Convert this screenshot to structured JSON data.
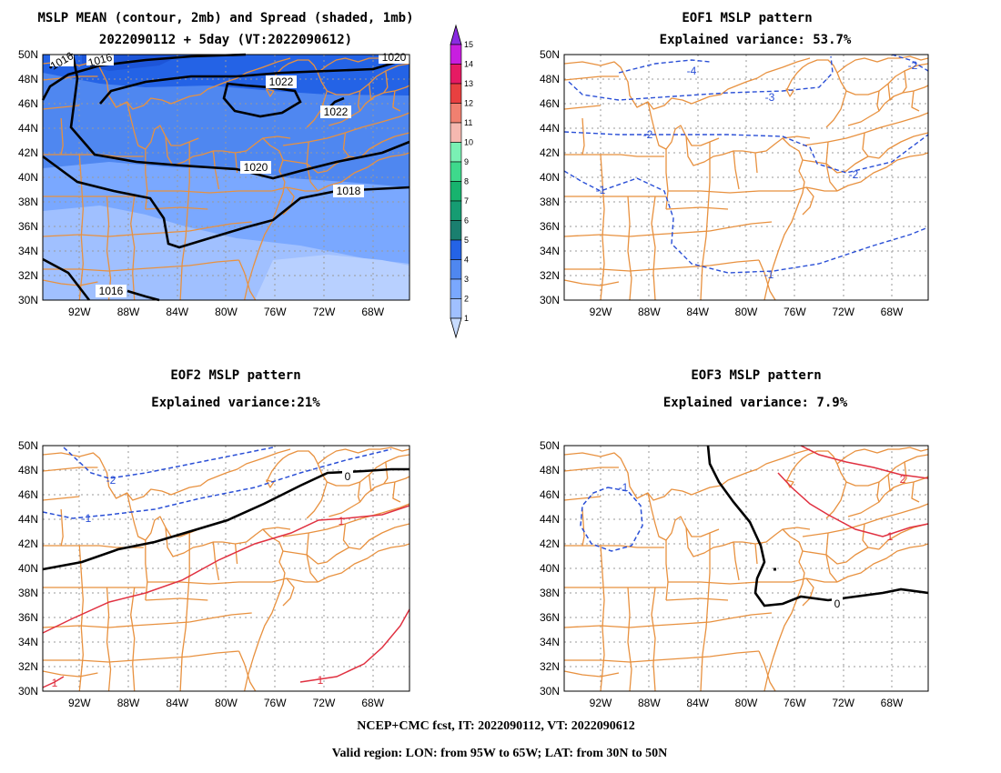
{
  "figure": {
    "footer_line1": "NCEP+CMC fcst, IT: 2022090112, VT: 2022090612",
    "footer_line2": "Valid region: LON: from 95W to 65W; LAT: from 30N to 50N"
  },
  "panels": [
    {
      "id": "mean",
      "title_lines": [
        "MSLP MEAN (contour, 2mb) and Spread (shaded, 1mb)",
        "2022090112 + 5day (VT:2022090612)"
      ],
      "contour_labels": [
        {
          "text": "1016"
        },
        {
          "text": "1016"
        },
        {
          "text": "1016"
        },
        {
          "text": "1018"
        },
        {
          "text": "1020"
        },
        {
          "text": "1020"
        },
        {
          "text": "1022"
        },
        {
          "text": "1022"
        }
      ]
    },
    {
      "id": "eof1",
      "title_lines": [
        "EOF1 MSLP pattern",
        "Explained variance: 53.7%"
      ],
      "contour_labels": [
        {
          "text": "-4"
        },
        {
          "text": "-3"
        },
        {
          "text": "-2"
        },
        {
          "text": "-2"
        },
        {
          "text": "-2"
        },
        {
          "text": "-1"
        },
        {
          "text": "-1"
        }
      ]
    },
    {
      "id": "eof2",
      "title_lines": [
        "EOF2 MSLP pattern",
        "Explained variance:21%"
      ],
      "contour_labels": [
        {
          "text": "-2"
        },
        {
          "text": "-1"
        },
        {
          "text": "0"
        },
        {
          "text": "1"
        },
        {
          "text": "1"
        },
        {
          "text": "1"
        }
      ]
    },
    {
      "id": "eof3",
      "title_lines": [
        "EOF3 MSLP pattern",
        "Explained variance: 7.9%"
      ],
      "contour_labels": [
        {
          "text": "-1"
        },
        {
          "text": "0"
        },
        {
          "text": "2"
        },
        {
          "text": "1"
        }
      ]
    }
  ],
  "axes": {
    "lat_ticks": [
      "50N",
      "48N",
      "46N",
      "44N",
      "42N",
      "40N",
      "38N",
      "36N",
      "34N",
      "32N",
      "30N"
    ],
    "lon_ticks": [
      "92W",
      "88W",
      "84W",
      "80W",
      "76W",
      "72W",
      "68W"
    ],
    "lon_range_deg": [
      -95,
      -65
    ],
    "lat_range_deg": [
      30,
      50
    ]
  },
  "colorbar": {
    "levels": [
      "1",
      "2",
      "3",
      "4",
      "5",
      "6",
      "7",
      "8",
      "9",
      "10",
      "11",
      "12",
      "13",
      "14",
      "15"
    ],
    "colors": [
      "#c8dcff",
      "#a0c0ff",
      "#7aa8ff",
      "#4f87f0",
      "#2463e6",
      "#1a7f6f",
      "#169c72",
      "#17b36e",
      "#3ed98c",
      "#7af0b4",
      "#f5b8b0",
      "#f08070",
      "#e84040",
      "#e61a63",
      "#c81ee0",
      "#8a2be2"
    ]
  },
  "colors": {
    "coast": "#e8913f",
    "negative_contour": "#2a4fd6",
    "positive_contour": "#e03040",
    "zero_contour": "#000000"
  }
}
